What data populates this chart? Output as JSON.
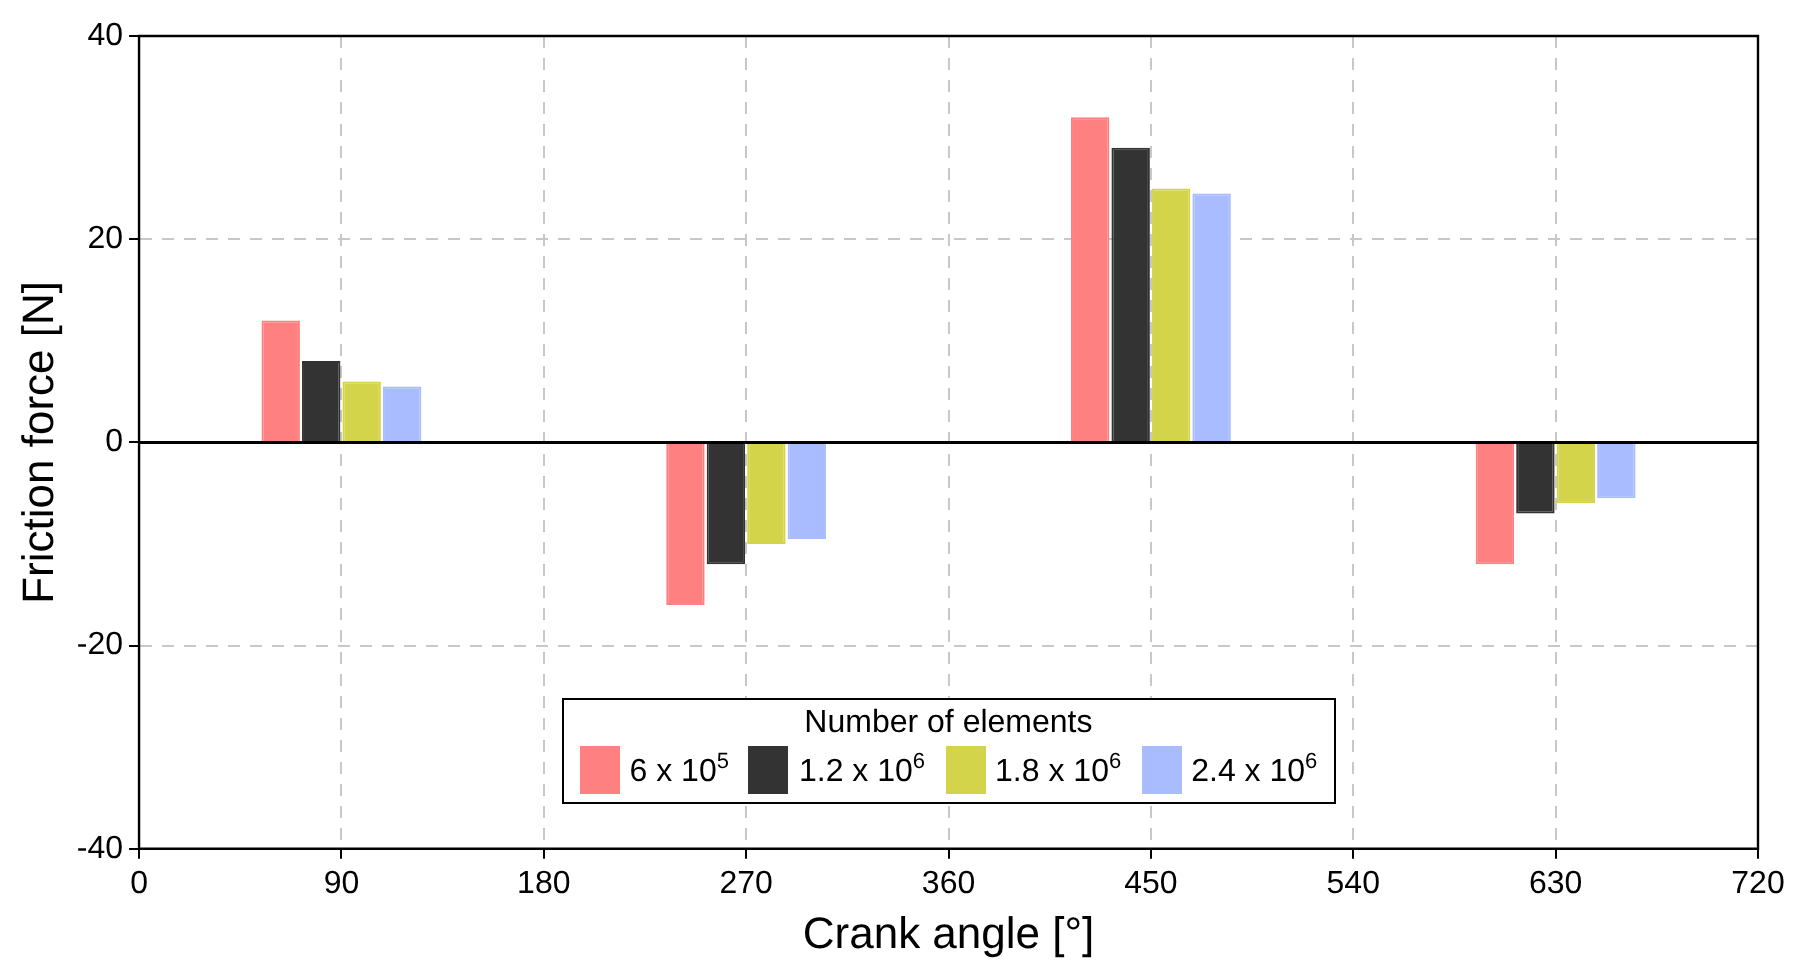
{
  "chart_data": {
    "type": "bar",
    "xlabel": "Crank angle [°]",
    "ylabel": "Friction force [N]",
    "legend_title": "Number of elements",
    "legend": "bottom",
    "x": [
      90,
      270,
      450,
      630
    ],
    "series": [
      {
        "name": "6 x 10$^{5}$",
        "color": "#ff8080",
        "values": [
          12,
          -16,
          32,
          -12
        ]
      },
      {
        "name": "1.2 x 10$^{6}$",
        "color": "#333333",
        "values": [
          8,
          -12,
          29,
          -7
        ]
      },
      {
        "name": "1.8 x 10$^{6}$",
        "color": "#d4d44a",
        "values": [
          6,
          -10,
          25,
          -6
        ]
      },
      {
        "name": "2.4 x 10$^{6}$",
        "color": "#a8bcff",
        "values": [
          5.5,
          -9.5,
          24.5,
          -5.5
        ]
      }
    ],
    "xlim": [
      0,
      720
    ],
    "xticks": [
      0,
      90,
      180,
      270,
      360,
      450,
      540,
      630,
      720
    ],
    "ylim": [
      -40,
      40
    ],
    "yticks": [
      -40,
      -20,
      0,
      20,
      40
    ],
    "grid": true
  }
}
